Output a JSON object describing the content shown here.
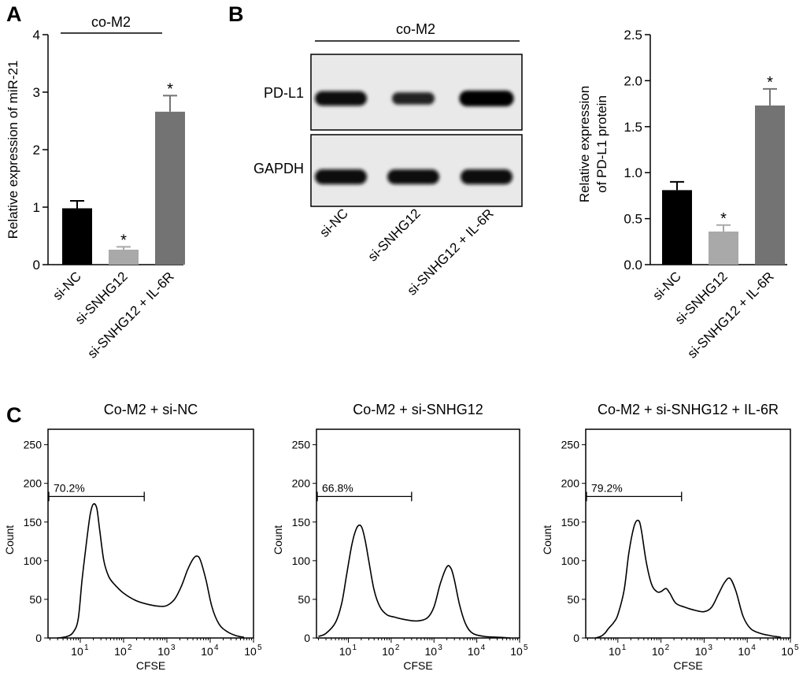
{
  "panels": {
    "a": "A",
    "b": "B",
    "c": "C"
  },
  "group_label": "co-M2",
  "sig_symbol": "*",
  "chart_data": [
    {
      "id": "A",
      "type": "bar",
      "title": "",
      "ylabel": "Relative expression of miR-21",
      "categories": [
        "si-NC",
        "si-SNHG12",
        "si-SNHG12 + IL-6R"
      ],
      "values": [
        0.98,
        0.26,
        2.66
      ],
      "errors": [
        0.13,
        0.05,
        0.28
      ],
      "significant": [
        false,
        true,
        true
      ],
      "colors": [
        "#000000",
        "#a9a9a9",
        "#737373"
      ],
      "ylim": [
        0,
        4
      ],
      "yticks": [
        0,
        1,
        2,
        3,
        4
      ],
      "ytick_labels": [
        "0",
        "1",
        "2",
        "3",
        "4"
      ]
    },
    {
      "id": "B",
      "type": "bar",
      "title": "",
      "ylabel_lines": [
        "Relative expression",
        "of PD-L1 protein"
      ],
      "categories": [
        "si-NC",
        "si-SNHG12",
        "si-SNHG12 + IL-6R"
      ],
      "values": [
        0.81,
        0.36,
        1.73
      ],
      "errors": [
        0.09,
        0.07,
        0.18
      ],
      "significant": [
        false,
        true,
        true
      ],
      "colors": [
        "#000000",
        "#a9a9a9",
        "#737373"
      ],
      "ylim": [
        0,
        2.5
      ],
      "yticks": [
        0,
        0.5,
        1.0,
        1.5,
        2.0,
        2.5
      ],
      "ytick_labels": [
        "0.0",
        "0.5",
        "1.0",
        "1.5",
        "2.0",
        "2.5"
      ]
    },
    {
      "id": "C1",
      "type": "line",
      "title": "Co-M2 + si-NC",
      "xlabel": "CFSE",
      "ylabel": "Count",
      "gate_label": "70.2%",
      "gate_range": [
        1.8,
        300
      ],
      "gate_y": 183,
      "xlim": [
        1.8,
        100000
      ],
      "xscale": "log",
      "xticks": [
        10,
        100,
        1000,
        10000,
        100000
      ],
      "xtick_base": "10",
      "xtick_exp": [
        "1",
        "2",
        "3",
        "4",
        "5"
      ],
      "ylim": [
        0,
        270
      ],
      "yticks": [
        0,
        50,
        100,
        150,
        200,
        250
      ],
      "ytick_labels": [
        "0",
        "50",
        "100",
        "150",
        "200",
        "250"
      ],
      "x": [
        3,
        5,
        7,
        9,
        11,
        14,
        17,
        20,
        24,
        28,
        35,
        45,
        60,
        100,
        200,
        400,
        700,
        1000,
        1500,
        2200,
        3000,
        4000,
        5000,
        6000,
        8000,
        11000,
        16000,
        25000,
        40000,
        60000
      ],
      "y": [
        0,
        2,
        8,
        25,
        75,
        125,
        160,
        173,
        168,
        140,
        100,
        80,
        70,
        58,
        48,
        43,
        41,
        42,
        50,
        68,
        88,
        102,
        106,
        100,
        75,
        40,
        18,
        8,
        3,
        1
      ]
    },
    {
      "id": "C2",
      "type": "line",
      "title": "Co-M2 + si-SNHG12",
      "xlabel": "CFSE",
      "ylabel": "Count",
      "gate_label": "66.8%",
      "gate_range": [
        1.8,
        300
      ],
      "gate_y": 183,
      "xlim": [
        1.8,
        100000
      ],
      "xscale": "log",
      "xticks": [
        10,
        100,
        1000,
        10000,
        100000
      ],
      "xtick_base": "10",
      "xtick_exp": [
        "1",
        "2",
        "3",
        "4",
        "5"
      ],
      "ylim": [
        0,
        270
      ],
      "yticks": [
        0,
        50,
        100,
        150,
        200,
        250
      ],
      "ytick_labels": [
        "0",
        "50",
        "100",
        "150",
        "200",
        "250"
      ],
      "x": [
        2,
        3,
        5,
        7,
        9,
        12,
        15,
        18,
        21,
        25,
        30,
        40,
        55,
        80,
        120,
        200,
        400,
        700,
        1000,
        1400,
        2000,
        2500,
        3000,
        4000,
        5500,
        8000,
        15000,
        30000,
        60000
      ],
      "y": [
        2,
        6,
        20,
        45,
        80,
        120,
        140,
        146,
        142,
        125,
        100,
        62,
        40,
        30,
        27,
        24,
        22,
        26,
        40,
        70,
        92,
        90,
        75,
        42,
        18,
        6,
        2,
        1,
        0
      ]
    },
    {
      "id": "C3",
      "type": "line",
      "title": "Co-M2 + si-SNHG12 + IL-6R",
      "xlabel": "CFSE",
      "ylabel": "Count",
      "gate_label": "79.2%",
      "gate_range": [
        1.8,
        300
      ],
      "gate_y": 183,
      "xlim": [
        1.8,
        100000
      ],
      "xscale": "log",
      "xticks": [
        10,
        100,
        1000,
        10000,
        100000
      ],
      "xtick_base": "10",
      "xtick_exp": [
        "1",
        "2",
        "3",
        "4",
        "5"
      ],
      "ylim": [
        0,
        270
      ],
      "yticks": [
        0,
        50,
        100,
        150,
        200,
        250
      ],
      "ytick_labels": [
        "0",
        "50",
        "100",
        "150",
        "200",
        "250"
      ],
      "x": [
        3,
        4,
        5,
        6,
        8,
        10,
        14,
        18,
        24,
        30,
        35,
        45,
        60,
        80,
        100,
        130,
        160,
        220,
        350,
        600,
        1000,
        1500,
        2200,
        3000,
        4000,
        5500,
        8000,
        12000,
        20000,
        35000,
        60000
      ],
      "y": [
        0,
        2,
        6,
        12,
        20,
        30,
        62,
        110,
        145,
        152,
        140,
        100,
        70,
        60,
        60,
        64,
        58,
        45,
        40,
        36,
        34,
        40,
        58,
        72,
        77,
        60,
        28,
        12,
        6,
        3,
        1
      ]
    }
  ],
  "blot": {
    "title": "co-M2",
    "bands": [
      {
        "label": "PD-L1",
        "intensities": [
          0.85,
          0.55,
          1.0
        ],
        "widths": [
          1.0,
          0.82,
          1.05
        ]
      },
      {
        "label": "GAPDH",
        "intensities": [
          0.9,
          0.88,
          0.9
        ],
        "widths": [
          1.0,
          1.0,
          1.0
        ]
      }
    ],
    "lanes": [
      "si-NC",
      "si-SNHG12",
      "si-SNHG12 + IL-6R"
    ]
  }
}
